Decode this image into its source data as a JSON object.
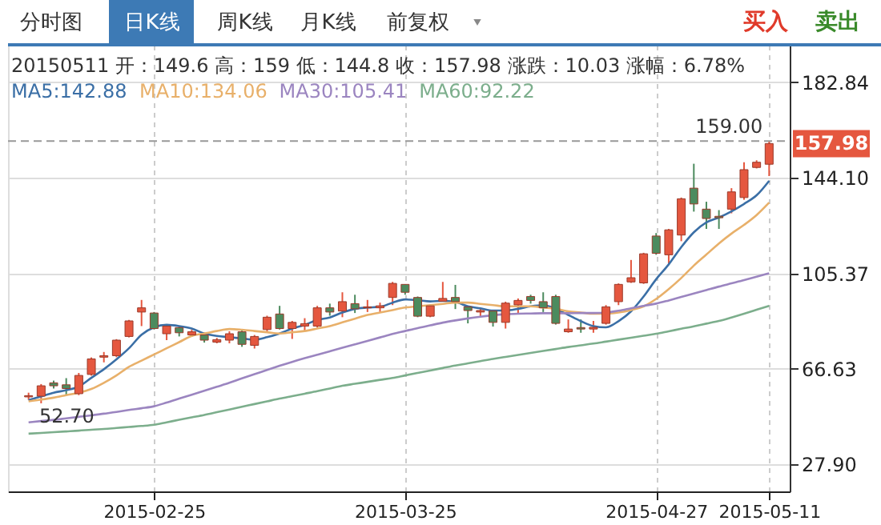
{
  "chart_data": {
    "type": "candlestick",
    "categories": [
      null,
      null,
      null,
      null,
      null,
      null,
      null,
      null,
      null,
      null,
      "2015-02-25",
      null,
      null,
      null,
      null,
      null,
      null,
      null,
      null,
      null,
      null,
      null,
      null,
      null,
      null,
      null,
      null,
      null,
      null,
      null,
      "2015-03-25",
      null,
      null,
      null,
      null,
      null,
      null,
      null,
      null,
      null,
      null,
      null,
      null,
      null,
      null,
      null,
      null,
      null,
      null,
      null,
      "2015-04-27",
      null,
      null,
      null,
      null,
      null,
      null,
      null,
      null,
      "2015-05-11"
    ],
    "ohlc": [
      [
        55.3,
        57.0,
        54.1,
        55.8
      ],
      [
        55.6,
        60.5,
        52.7,
        59.8
      ],
      [
        61.0,
        61.9,
        58.7,
        59.8
      ],
      [
        60.2,
        62.9,
        56.0,
        58.7
      ],
      [
        56.6,
        65.0,
        56.0,
        64.0
      ],
      [
        64.4,
        71.3,
        63.9,
        70.7
      ],
      [
        71.4,
        73.5,
        69.3,
        72.0
      ],
      [
        72.0,
        78.7,
        71.4,
        78.3
      ],
      [
        79.8,
        86.5,
        79.4,
        86.1
      ],
      [
        89.7,
        94.6,
        84.0,
        91.4
      ],
      [
        89.3,
        89.7,
        82.6,
        83.0
      ],
      [
        80.9,
        84.6,
        78.3,
        84.0
      ],
      [
        83.4,
        84.0,
        79.8,
        81.3
      ],
      [
        80.4,
        82.5,
        79.6,
        81.7
      ],
      [
        80.4,
        81.3,
        77.3,
        78.3
      ],
      [
        77.5,
        79.2,
        77.0,
        78.5
      ],
      [
        78.3,
        81.9,
        77.0,
        80.9
      ],
      [
        81.7,
        82.5,
        75.6,
        76.6
      ],
      [
        76.2,
        80.4,
        74.9,
        79.8
      ],
      [
        82.6,
        88.2,
        81.9,
        87.6
      ],
      [
        88.9,
        92.2,
        82.6,
        83.0
      ],
      [
        83.0,
        86.1,
        78.8,
        85.5
      ],
      [
        84.0,
        87.2,
        81.9,
        85.0
      ],
      [
        84.0,
        92.2,
        83.4,
        91.4
      ],
      [
        91.4,
        93.1,
        88.2,
        89.7
      ],
      [
        90.1,
        97.7,
        87.6,
        93.9
      ],
      [
        93.1,
        96.7,
        89.3,
        91.0
      ],
      [
        91.4,
        94.6,
        89.7,
        91.8
      ],
      [
        91.4,
        93.5,
        89.7,
        92.2
      ],
      [
        95.6,
        101.9,
        92.5,
        101.3
      ],
      [
        100.9,
        100.9,
        96.7,
        97.7
      ],
      [
        95.6,
        96.0,
        87.6,
        88.0
      ],
      [
        88.0,
        92.6,
        87.6,
        92.2
      ],
      [
        94.1,
        101.9,
        93.9,
        95.2
      ],
      [
        95.6,
        100.7,
        90.9,
        93.9
      ],
      [
        91.8,
        92.2,
        85.1,
        90.3
      ],
      [
        89.7,
        91.4,
        87.6,
        90.3
      ],
      [
        90.1,
        90.1,
        83.8,
        85.5
      ],
      [
        85.5,
        93.9,
        83.0,
        93.3
      ],
      [
        92.6,
        95.2,
        89.3,
        94.4
      ],
      [
        96.0,
        96.7,
        93.1,
        94.4
      ],
      [
        93.9,
        97.7,
        89.7,
        91.4
      ],
      [
        96.0,
        96.7,
        84.6,
        85.1
      ],
      [
        81.7,
        86.7,
        81.3,
        82.8
      ],
      [
        83.4,
        86.7,
        81.3,
        82.8
      ],
      [
        82.8,
        86.1,
        81.3,
        83.5
      ],
      [
        85.1,
        92.5,
        84.6,
        91.8
      ],
      [
        93.9,
        101.3,
        92.5,
        100.9
      ],
      [
        101.9,
        110.8,
        101.5,
        103.6
      ],
      [
        101.5,
        113.7,
        101.1,
        113.3
      ],
      [
        120.5,
        121.7,
        112.9,
        113.5
      ],
      [
        112.9,
        123.4,
        109.3,
        123.0
      ],
      [
        120.9,
        136.1,
        118.4,
        135.6
      ],
      [
        139.9,
        149.8,
        130.4,
        133.5
      ],
      [
        131.4,
        134.4,
        123.4,
        127.6
      ],
      [
        128.5,
        131.0,
        123.4,
        127.9
      ],
      [
        131.4,
        139.9,
        129.7,
        138.4
      ],
      [
        136.1,
        150.4,
        135.2,
        147.4
      ],
      [
        148.3,
        151.2,
        147.9,
        150.4
      ],
      [
        149.6,
        159.0,
        144.8,
        157.98
      ]
    ],
    "colors": [
      "#e5573f",
      "#e5573f",
      "#4c8b5e",
      "#4c8b5e",
      "#e5573f",
      "#e5573f",
      "#e5573f",
      "#e5573f",
      "#e5573f",
      "#e5573f",
      "#4c8b5e",
      "#e5573f",
      "#4c8b5e",
      "#e5573f",
      "#4c8b5e",
      "#e5573f",
      "#e5573f",
      "#4c8b5e",
      "#e5573f",
      "#e5573f",
      "#4c8b5e",
      "#e5573f",
      "#e5573f",
      "#e5573f",
      "#4c8b5e",
      "#e5573f",
      "#4c8b5e",
      "#e5573f",
      "#e5573f",
      "#e5573f",
      "#4c8b5e",
      "#4c8b5e",
      "#e5573f",
      "#e5573f",
      "#4c8b5e",
      "#4c8b5e",
      "#e5573f",
      "#4c8b5e",
      "#e5573f",
      "#e5573f",
      "#4c8b5e",
      "#4c8b5e",
      "#4c8b5e",
      "#e5573f",
      "#4c8b5e",
      "#e5573f",
      "#e5573f",
      "#e5573f",
      "#e5573f",
      "#e5573f",
      "#4c8b5e",
      "#e5573f",
      "#e5573f",
      "#4c8b5e",
      "#4c8b5e",
      "#4c8b5e",
      "#e5573f",
      "#e5573f",
      "#e5573f",
      "#e5573f"
    ],
    "series": [
      {
        "name": "MA5:142.88",
        "color": "#3b6fa6",
        "type": "line",
        "values": [
          54,
          55.5,
          57,
          58,
          59.5,
          63,
          66.5,
          70.5,
          75,
          80.5,
          83.5,
          84.5,
          84,
          83,
          81,
          80,
          79.5,
          79,
          78.5,
          79.5,
          81,
          83,
          84.5,
          86.5,
          87.5,
          89.5,
          91,
          91.5,
          91.8,
          93.5,
          94.8,
          94.5,
          94,
          94.2,
          93.8,
          92,
          91.2,
          90.3,
          90.3,
          91,
          92,
          92.5,
          91,
          88.5,
          86,
          84,
          83.5,
          86,
          90,
          96,
          103,
          109,
          116,
          122,
          126,
          128,
          130.5,
          133.5,
          137,
          142.88
        ]
      },
      {
        "name": "MA10:134.06",
        "color": "#e8b06a",
        "type": "line",
        "values": [
          53.5,
          54.2,
          55,
          56,
          57,
          58.5,
          61,
          64,
          67.5,
          70,
          72.5,
          75,
          77.5,
          80,
          81,
          82,
          82.8,
          82.5,
          82,
          81.5,
          81,
          81.5,
          82,
          83,
          84,
          85.5,
          87,
          88.5,
          89.5,
          90.5,
          91.5,
          92,
          92.5,
          93,
          93.5,
          93.5,
          93,
          92.5,
          92,
          92,
          92,
          91.5,
          91,
          90,
          89.5,
          89,
          89,
          89.5,
          90.5,
          92,
          95,
          99,
          103.5,
          108.5,
          113,
          117.5,
          121.5,
          125,
          129,
          134.06
        ]
      },
      {
        "name": "MA30:105.41",
        "color": "#9b85c0",
        "type": "line",
        "values": [
          45.0,
          45.5,
          46.0,
          46.6,
          47.2,
          47.8,
          48.5,
          49.2,
          50.0,
          50.7,
          51.5,
          53.0,
          54.6,
          56.2,
          57.8,
          59.4,
          61.0,
          62.8,
          64.5,
          66.2,
          67.9,
          69.5,
          71.0,
          72.4,
          73.8,
          75.2,
          76.6,
          78.0,
          79.4,
          80.8,
          82.0,
          83.2,
          84.3,
          85.4,
          86.3,
          87.1,
          87.8,
          88.4,
          88.8,
          89.0,
          89.1,
          89.2,
          89.2,
          89.2,
          89.3,
          89.3,
          89.5,
          90.2,
          91.2,
          92.2,
          93.1,
          94.4,
          95.8,
          97.2,
          98.6,
          100.0,
          101.3,
          102.6,
          104.0,
          105.41
        ]
      },
      {
        "name": "MA60:92.22",
        "color": "#7cae8c",
        "type": "line",
        "values": [
          40.4,
          40.7,
          41.0,
          41.3,
          41.6,
          42.0,
          42.3,
          42.7,
          43.1,
          43.5,
          44.0,
          45.0,
          46.0,
          47.0,
          48.0,
          49.1,
          50.2,
          51.3,
          52.4,
          53.5,
          54.6,
          55.6,
          56.6,
          57.6,
          58.7,
          59.8,
          60.6,
          61.4,
          62.2,
          63.0,
          64.0,
          65.0,
          66.0,
          67.0,
          68.0,
          68.9,
          69.8,
          70.7,
          71.5,
          72.3,
          73.1,
          73.9,
          74.7,
          75.5,
          76.2,
          76.9,
          77.7,
          78.5,
          79.3,
          80.1,
          80.9,
          81.9,
          82.9,
          83.9,
          85.0,
          86.1,
          87.5,
          89.0,
          90.6,
          92.22
        ]
      }
    ],
    "ylim": [
      17,
      198
    ],
    "yticks": [
      {
        "value": 27.9,
        "label": "27.90"
      },
      {
        "value": 66.63,
        "label": "66.63"
      },
      {
        "value": 105.37,
        "label": "105.37"
      },
      {
        "value": 144.1,
        "label": "144.10"
      },
      {
        "value": 182.84,
        "label": "182.84"
      }
    ],
    "grid": true,
    "legend": "top left",
    "marker": "none",
    "line_style": "solid",
    "ref_lines": [
      {
        "axis": "y",
        "value": 159,
        "label": "159.00",
        "line_style": "dashed",
        "color": "#999999"
      }
    ],
    "annotations": [
      "分时图",
      "日K线",
      "周K线",
      "月K线",
      "前复权",
      "买入",
      "卖出",
      "20150511 开：149.6 高：159 低：144.8 收：157.98 涨跌：10.03 涨幅：6.78%",
      "52.70",
      "157.98"
    ]
  }
}
